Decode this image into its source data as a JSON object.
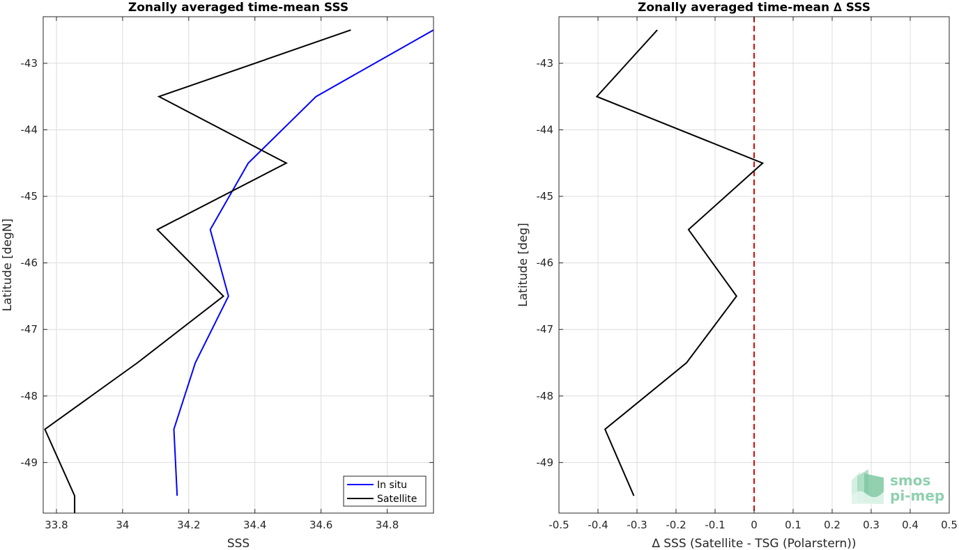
{
  "chart_data": [
    {
      "type": "line",
      "title": "Zonally averaged time-mean SSS",
      "xlabel": "SSS",
      "ylabel": "Latitude [degN]",
      "xlim": [
        33.76,
        34.94
      ],
      "ylim": [
        -49.76,
        -42.3
      ],
      "xticks": [
        33.8,
        34.0,
        34.2,
        34.4,
        34.6,
        34.8
      ],
      "xtick_labels": [
        "33.8",
        "34",
        "34.2",
        "34.4",
        "34.6",
        "34.8"
      ],
      "yticks": [
        -43,
        -44,
        -45,
        -46,
        -47,
        -48,
        -49
      ],
      "ytick_labels": [
        "-43",
        "-44",
        "-45",
        "-46",
        "-47",
        "-48",
        "-49"
      ],
      "grid": true,
      "legend": "bottom-right",
      "series": [
        {
          "name": "In situ",
          "color": "#0000ff",
          "x": [
            34.94,
            34.585,
            34.38,
            34.265,
            34.32,
            34.22,
            34.155,
            34.165
          ],
          "y": [
            -42.5,
            -43.5,
            -44.5,
            -45.5,
            -46.5,
            -47.5,
            -48.5,
            -49.5
          ]
        },
        {
          "name": "Satellite",
          "color": "#000000",
          "x": [
            34.69,
            34.11,
            34.495,
            34.105,
            34.305,
            34.045,
            33.765,
            33.855,
            33.855
          ],
          "y": [
            -42.5,
            -43.5,
            -44.5,
            -45.5,
            -46.5,
            -47.5,
            -48.5,
            -49.5,
            -49.76
          ]
        }
      ]
    },
    {
      "type": "line",
      "title": "Zonally averaged time-mean ∆ SSS",
      "xlabel": "∆ SSS (Satellite - TSG (Polarstern))",
      "ylabel": "Latitude [deg]",
      "xlim": [
        -0.5,
        0.5
      ],
      "ylim": [
        -49.76,
        -42.3
      ],
      "xticks": [
        -0.5,
        -0.4,
        -0.3,
        -0.2,
        -0.1,
        0,
        0.1,
        0.2,
        0.3,
        0.4,
        0.5
      ],
      "xtick_labels": [
        "-0.5",
        "-0.4",
        "-0.3",
        "-0.2",
        "-0.1",
        "0",
        "0.1",
        "0.2",
        "0.3",
        "0.4",
        "0.5"
      ],
      "yticks": [
        -43,
        -44,
        -45,
        -46,
        -47,
        -48,
        -49
      ],
      "ytick_labels": [
        "-43",
        "-44",
        "-45",
        "-46",
        "-47",
        "-48",
        "-49"
      ],
      "grid": true,
      "reference_line": {
        "x": 0,
        "color": "#dd0000",
        "style": "dashed"
      },
      "series": [
        {
          "color": "#000000",
          "x": [
            -0.248,
            -0.403,
            0.022,
            -0.168,
            -0.045,
            -0.173,
            -0.382,
            -0.308
          ],
          "y": [
            -42.5,
            -43.5,
            -44.5,
            -45.5,
            -46.5,
            -47.5,
            -48.5,
            -49.5
          ]
        }
      ]
    }
  ],
  "logo": {
    "line1": "smos",
    "line2": "pi-mep"
  }
}
